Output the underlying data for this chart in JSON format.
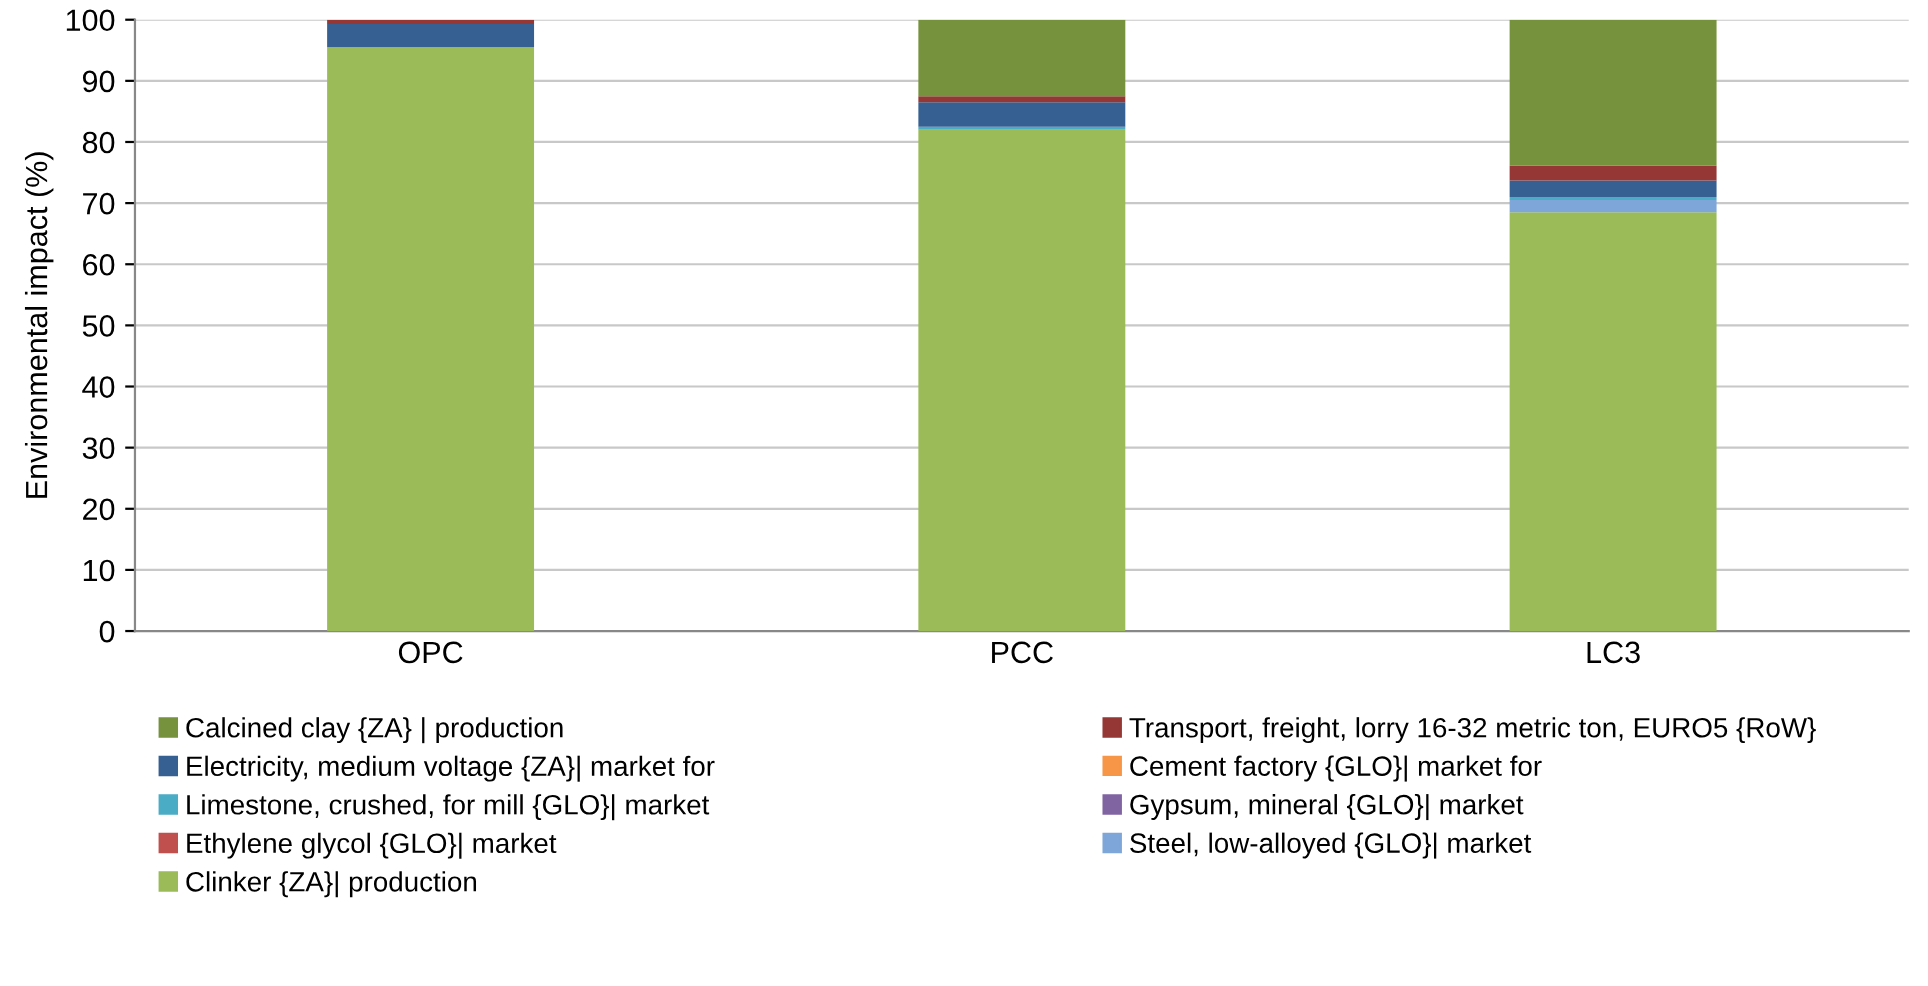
{
  "chart_data": {
    "type": "bar",
    "stacked": true,
    "ylabel": "Environmental impact (%)",
    "categories": [
      "OPC",
      "PCC",
      "LC3"
    ],
    "ylim": [
      0,
      100
    ],
    "yticks": [
      0,
      10,
      20,
      30,
      40,
      50,
      60,
      70,
      80,
      90,
      100
    ],
    "grid": "y",
    "legend": "bottom",
    "series": [
      {
        "name": "Clinker {ZA}| production",
        "color": "#9bbb59",
        "values": [
          95.5,
          82,
          68.5
        ]
      },
      {
        "name": "Steel, low-alloyed {GLO}| market",
        "color": "#7ea6d8",
        "values": [
          0,
          0,
          2
        ]
      },
      {
        "name": "Ethylene glycol {GLO}| market",
        "color": "#c0504d",
        "values": [
          0,
          0,
          0
        ]
      },
      {
        "name": "Gypsum, mineral {GLO}| market",
        "color": "#8064a2",
        "values": [
          0,
          0,
          0
        ]
      },
      {
        "name": "Limestone, crushed, for mill {GLO}| market",
        "color": "#4bacc6",
        "values": [
          0,
          0.5,
          0.5
        ]
      },
      {
        "name": "Cement factory {GLO}| market for",
        "color": "#f79646",
        "values": [
          0,
          0,
          0
        ]
      },
      {
        "name": "Electricity, medium voltage {ZA}| market for",
        "color": "#376092",
        "values": [
          3.8,
          4,
          2.7
        ]
      },
      {
        "name": "Transport, freight, lorry 16-32 metric ton, EURO5 {RoW}",
        "color": "#953735",
        "values": [
          0.7,
          1,
          2.4
        ]
      },
      {
        "name": "Calcined clay {ZA} | production",
        "color": "#76923c",
        "values": [
          0,
          12.5,
          23.9
        ]
      }
    ]
  }
}
